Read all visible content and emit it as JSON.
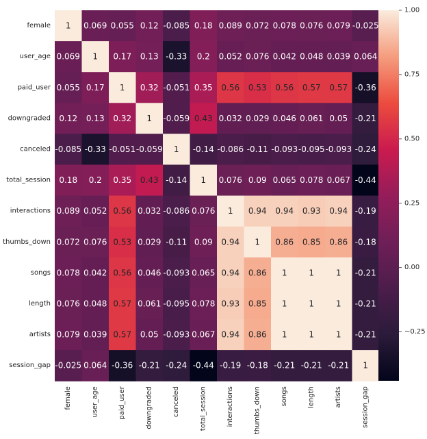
{
  "chart_data": {
    "type": "heatmap",
    "title": "",
    "xlabel": "",
    "ylabel": "",
    "rows": [
      "female",
      "user_age",
      "paid_user",
      "downgraded",
      "canceled",
      "total_session",
      "interactions",
      "thumbs_down",
      "songs",
      "length",
      "artists",
      "session_gap"
    ],
    "columns": [
      "female",
      "user_age",
      "paid_user",
      "downgraded",
      "canceled",
      "total_session",
      "interactions",
      "thumbs_down",
      "songs",
      "length",
      "artists",
      "session_gap"
    ],
    "values": [
      [
        1,
        0.069,
        0.055,
        0.12,
        -0.085,
        0.18,
        0.089,
        0.072,
        0.078,
        0.076,
        0.079,
        -0.025
      ],
      [
        0.069,
        1,
        0.17,
        0.13,
        -0.33,
        0.2,
        0.052,
        0.076,
        0.042,
        0.048,
        0.039,
        0.064
      ],
      [
        0.055,
        0.17,
        1,
        0.32,
        -0.051,
        0.35,
        0.56,
        0.53,
        0.56,
        0.57,
        0.57,
        -0.36
      ],
      [
        0.12,
        0.13,
        0.32,
        1,
        -0.059,
        0.43,
        0.032,
        0.029,
        0.046,
        0.061,
        0.05,
        -0.21
      ],
      [
        -0.085,
        -0.33,
        -0.051,
        -0.059,
        1,
        -0.14,
        -0.086,
        -0.11,
        -0.093,
        -0.095,
        -0.093,
        -0.24
      ],
      [
        0.18,
        0.2,
        0.35,
        0.43,
        -0.14,
        1,
        0.076,
        0.09,
        0.065,
        0.078,
        0.067,
        -0.44
      ],
      [
        0.089,
        0.052,
        0.56,
        0.032,
        -0.086,
        0.076,
        1,
        0.94,
        0.94,
        0.93,
        0.94,
        -0.19
      ],
      [
        0.072,
        0.076,
        0.53,
        0.029,
        -0.11,
        0.09,
        0.94,
        1,
        0.86,
        0.85,
        0.86,
        -0.18
      ],
      [
        0.078,
        0.042,
        0.56,
        0.046,
        -0.093,
        0.065,
        0.94,
        0.86,
        1,
        1,
        1,
        -0.21
      ],
      [
        0.076,
        0.048,
        0.57,
        0.061,
        -0.095,
        0.078,
        0.93,
        0.85,
        1,
        1,
        1,
        -0.21
      ],
      [
        0.079,
        0.039,
        0.57,
        0.05,
        -0.093,
        0.067,
        0.94,
        0.86,
        1,
        1,
        1,
        -0.21
      ],
      [
        -0.025,
        0.064,
        -0.36,
        -0.21,
        -0.24,
        -0.44,
        -0.19,
        -0.18,
        -0.21,
        -0.21,
        -0.21,
        1
      ]
    ],
    "labels": [
      [
        "1",
        "0.069",
        "0.055",
        "0.12",
        "-0.085",
        "0.18",
        "0.089",
        "0.072",
        "0.078",
        "0.076",
        "0.079",
        "-0.025"
      ],
      [
        "0.069",
        "1",
        "0.17",
        "0.13",
        "-0.33",
        "0.2",
        "0.052",
        "0.076",
        "0.042",
        "0.048",
        "0.039",
        "0.064"
      ],
      [
        "0.055",
        "0.17",
        "1",
        "0.32",
        "-0.051",
        "0.35",
        "0.56",
        "0.53",
        "0.56",
        "0.57",
        "0.57",
        "-0.36"
      ],
      [
        "0.12",
        "0.13",
        "0.32",
        "1",
        "-0.059",
        "0.43",
        "0.032",
        "0.029",
        "0.046",
        "0.061",
        "0.05",
        "-0.21"
      ],
      [
        "-0.085",
        "-0.33",
        "-0.051",
        "-0.059",
        "1",
        "-0.14",
        "-0.086",
        "-0.11",
        "-0.093",
        "-0.095",
        "-0.093",
        "-0.24"
      ],
      [
        "0.18",
        "0.2",
        "0.35",
        "0.43",
        "-0.14",
        "1",
        "0.076",
        "0.09",
        "0.065",
        "0.078",
        "0.067",
        "-0.44"
      ],
      [
        "0.089",
        "0.052",
        "0.56",
        "0.032",
        "-0.086",
        "0.076",
        "1",
        "0.94",
        "0.94",
        "0.93",
        "0.94",
        "-0.19"
      ],
      [
        "0.072",
        "0.076",
        "0.53",
        "0.029",
        "-0.11",
        "0.09",
        "0.94",
        "1",
        "0.86",
        "0.85",
        "0.86",
        "-0.18"
      ],
      [
        "0.078",
        "0.042",
        "0.56",
        "0.046",
        "-0.093",
        "0.065",
        "0.94",
        "0.86",
        "1",
        "1",
        "1",
        "-0.21"
      ],
      [
        "0.076",
        "0.048",
        "0.57",
        "0.061",
        "-0.095",
        "0.078",
        "0.93",
        "0.85",
        "1",
        "1",
        "1",
        "-0.21"
      ],
      [
        "0.079",
        "0.039",
        "0.57",
        "0.05",
        "-0.093",
        "0.067",
        "0.94",
        "0.86",
        "1",
        "1",
        "1",
        "-0.21"
      ],
      [
        "-0.025",
        "0.064",
        "-0.36",
        "-0.21",
        "-0.24",
        "-0.44",
        "-0.19",
        "-0.18",
        "-0.21",
        "-0.21",
        "-0.21",
        "1"
      ]
    ],
    "colorbar": {
      "vmin": -0.44,
      "vmax": 1.0,
      "ticks": [
        1.0,
        0.75,
        0.5,
        0.25,
        0.0,
        -0.25
      ],
      "tick_labels": [
        "1.00",
        "0.75",
        "0.50",
        "0.25",
        "0.00",
        "−0.25"
      ],
      "colormap": "rocket"
    }
  }
}
